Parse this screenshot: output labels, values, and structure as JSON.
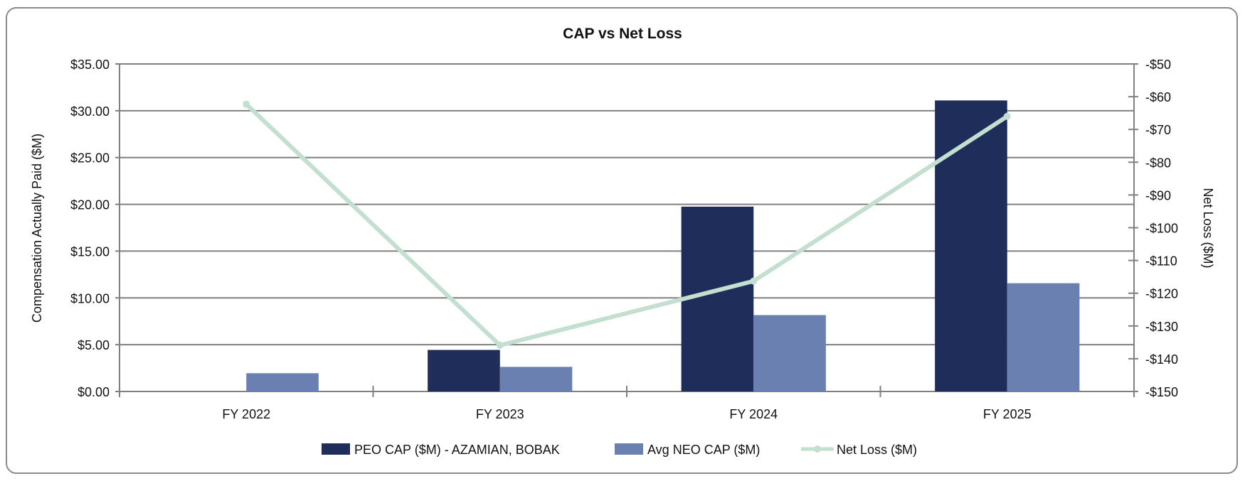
{
  "chart_data": {
    "type": "bar",
    "title": "CAP vs Net Loss",
    "categories": [
      "FY 2022",
      "FY 2023",
      "FY 2024",
      "FY 2025"
    ],
    "ylabel": "Compensation Actually Paid ($M)",
    "y2label": "Net Loss ($M)",
    "ylim": [
      0,
      35
    ],
    "y2lim": [
      -150,
      -50
    ],
    "yticks": [
      "$0.00",
      "$5.00",
      "$10.00",
      "$15.00",
      "$20.00",
      "$25.00",
      "$30.00",
      "$35.00"
    ],
    "y2ticks": [
      "-$150",
      "-$140",
      "-$130",
      "-$120",
      "-$110",
      "-$100",
      "-$90",
      "-$80",
      "-$70",
      "-$60",
      "-$50"
    ],
    "grid": true,
    "legend": "bottom",
    "series": [
      {
        "name": "PEO CAP ($M) - AZAMIAN, BOBAK",
        "type": "bar",
        "axis": "left",
        "color": "#1f2d5a",
        "values": [
          null,
          4.44,
          19.75,
          31.1
        ]
      },
      {
        "name": "Avg NEO CAP ($M)",
        "type": "bar",
        "axis": "left",
        "color": "#6a80b0",
        "values": [
          1.95,
          2.63,
          8.16,
          11.57
        ]
      },
      {
        "name": "Net Loss ($M)",
        "type": "line",
        "axis": "right",
        "color": "#c2dfd0",
        "values": [
          -62.3,
          -135.9,
          -116.3,
          -66.0
        ]
      }
    ]
  }
}
